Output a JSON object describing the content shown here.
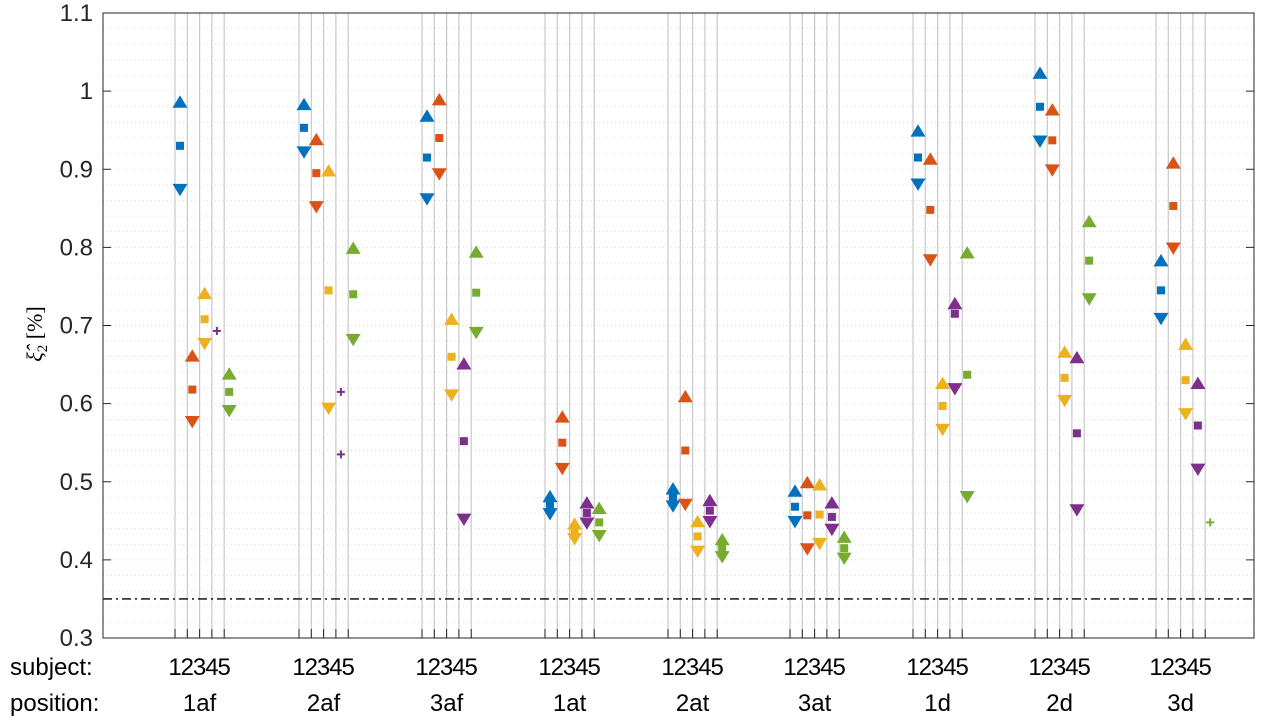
{
  "chart_data": {
    "type": "scatter",
    "title": "",
    "ylabel": {
      "symbol": "ξ̂",
      "subscript": "2",
      "unit": "[%]"
    },
    "ylim": [
      0.3,
      1.1
    ],
    "yticks": [
      0.3,
      0.4,
      0.5,
      0.6,
      0.7,
      0.8,
      0.9,
      1.0,
      1.1
    ],
    "ytick_labels": [
      "0.3",
      "0.4",
      "0.5",
      "0.6",
      "0.7",
      "0.8",
      "0.9",
      "1",
      "1.1"
    ],
    "reference_line": {
      "y": 0.35,
      "style": "dash-dot"
    },
    "grid": "minor dotted horizontal",
    "row_labels": {
      "subject": "subject:",
      "position": "position:"
    },
    "subject_labels": [
      "1",
      "2",
      "3",
      "4",
      "5"
    ],
    "positions": [
      "1af",
      "2af",
      "3af",
      "1at",
      "2at",
      "3at",
      "1d",
      "2d",
      "3d"
    ],
    "subject_colors": [
      "#0072BD",
      "#D95319",
      "#EDB120",
      "#7E2F8E",
      "#77AC30"
    ],
    "marker_legend": {
      "upper": "triangle-up",
      "estimate": "square",
      "lower": "triangle-down",
      "single": "plus"
    },
    "series": [
      {
        "position": "1af",
        "data": [
          [
            0.985,
            0.93,
            0.875
          ],
          [
            0.66,
            0.618,
            0.578
          ],
          [
            0.74,
            0.708,
            0.678
          ],
          [
            null,
            0.693,
            null
          ],
          [
            0.637,
            0.615,
            0.592
          ]
        ]
      },
      {
        "position": "2af",
        "data": [
          [
            0.982,
            0.953,
            0.923
          ],
          [
            0.937,
            0.895,
            0.853
          ],
          [
            0.897,
            0.745,
            0.595
          ],
          [
            null,
            0.615,
            0.535
          ],
          [
            0.798,
            0.74,
            0.683
          ]
        ]
      },
      {
        "position": "3af",
        "data": [
          [
            0.967,
            0.915,
            0.863
          ],
          [
            0.988,
            0.94,
            0.895
          ],
          [
            0.707,
            0.66,
            0.612
          ],
          [
            0.65,
            0.552,
            0.453
          ],
          [
            0.793,
            0.742,
            0.692
          ]
        ]
      },
      {
        "position": "1at",
        "data": [
          [
            0.48,
            0.47,
            0.46
          ],
          [
            0.582,
            0.55,
            0.518
          ],
          [
            0.445,
            0.437,
            0.428
          ],
          [
            0.472,
            0.46,
            0.448
          ],
          [
            0.465,
            0.448,
            0.432
          ]
        ]
      },
      {
        "position": "2at",
        "data": [
          [
            0.49,
            0.48,
            0.47
          ],
          [
            0.608,
            0.54,
            0.472
          ],
          [
            0.448,
            0.43,
            0.412
          ],
          [
            0.475,
            0.463,
            0.45
          ],
          [
            0.425,
            0.415,
            0.405
          ]
        ]
      },
      {
        "position": "3at",
        "data": [
          [
            0.487,
            0.468,
            0.45
          ],
          [
            0.498,
            0.457,
            0.415
          ],
          [
            0.495,
            0.458,
            0.422
          ],
          [
            0.472,
            0.455,
            0.44
          ],
          [
            0.428,
            0.415,
            0.403
          ]
        ]
      },
      {
        "position": "1d",
        "data": [
          [
            0.948,
            0.915,
            0.882
          ],
          [
            0.912,
            0.848,
            0.785
          ],
          [
            0.625,
            0.597,
            0.568
          ],
          [
            0.727,
            0.715,
            0.62
          ],
          [
            0.792,
            0.637,
            0.482
          ]
        ]
      },
      {
        "position": "2d",
        "data": [
          [
            1.022,
            0.98,
            0.937
          ],
          [
            0.975,
            0.937,
            0.9
          ],
          [
            0.665,
            0.633,
            0.605
          ],
          [
            0.658,
            0.562,
            0.465
          ],
          [
            0.832,
            0.783,
            0.735
          ]
        ]
      },
      {
        "position": "3d",
        "data": [
          [
            0.782,
            0.745,
            0.71
          ],
          [
            0.907,
            0.853,
            0.8
          ],
          [
            0.675,
            0.63,
            0.588
          ],
          [
            0.625,
            0.572,
            0.517
          ],
          [
            null,
            0.448,
            null
          ]
        ]
      }
    ]
  }
}
